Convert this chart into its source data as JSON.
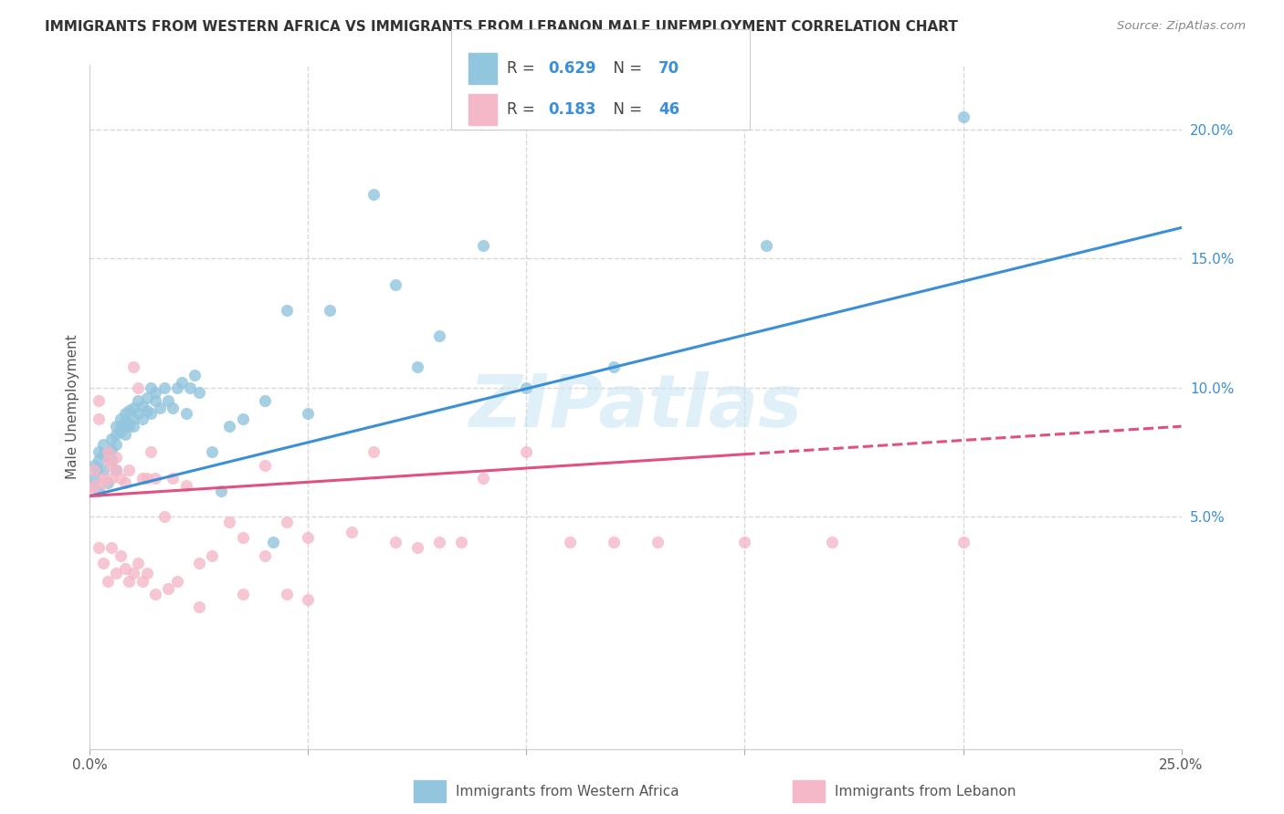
{
  "title": "IMMIGRANTS FROM WESTERN AFRICA VS IMMIGRANTS FROM LEBANON MALE UNEMPLOYMENT CORRELATION CHART",
  "source": "Source: ZipAtlas.com",
  "ylabel": "Male Unemployment",
  "xlim": [
    0.0,
    0.25
  ],
  "ylim": [
    -0.04,
    0.225
  ],
  "blue_color": "#92c5de",
  "blue_line_color": "#3b8fd4",
  "pink_color": "#f4b8c8",
  "pink_line_color": "#e05080",
  "text_blue": "#3b8fd4",
  "title_color": "#333333",
  "grid_color": "#d8d8d8",
  "background_color": "#ffffff",
  "watermark": "ZIPatlas",
  "blue_R": "0.629",
  "blue_N": "70",
  "pink_R": "0.183",
  "pink_N": "46",
  "blue_scatter_x": [
    0.0005,
    0.001,
    0.001,
    0.0015,
    0.002,
    0.002,
    0.002,
    0.003,
    0.003,
    0.003,
    0.004,
    0.004,
    0.004,
    0.005,
    0.005,
    0.005,
    0.006,
    0.006,
    0.006,
    0.006,
    0.007,
    0.007,
    0.007,
    0.008,
    0.008,
    0.008,
    0.009,
    0.009,
    0.009,
    0.01,
    0.01,
    0.01,
    0.011,
    0.011,
    0.012,
    0.012,
    0.013,
    0.013,
    0.014,
    0.014,
    0.015,
    0.015,
    0.016,
    0.017,
    0.018,
    0.019,
    0.02,
    0.021,
    0.022,
    0.023,
    0.024,
    0.025,
    0.028,
    0.03,
    0.032,
    0.035,
    0.04,
    0.042,
    0.045,
    0.05,
    0.055,
    0.065,
    0.07,
    0.075,
    0.08,
    0.09,
    0.1,
    0.12,
    0.155,
    0.2
  ],
  "blue_scatter_y": [
    0.062,
    0.065,
    0.07,
    0.068,
    0.06,
    0.072,
    0.075,
    0.068,
    0.074,
    0.078,
    0.063,
    0.073,
    0.075,
    0.08,
    0.076,
    0.072,
    0.082,
    0.078,
    0.085,
    0.068,
    0.083,
    0.088,
    0.085,
    0.087,
    0.082,
    0.09,
    0.086,
    0.091,
    0.085,
    0.088,
    0.092,
    0.085,
    0.09,
    0.095,
    0.093,
    0.088,
    0.091,
    0.096,
    0.09,
    0.1,
    0.095,
    0.098,
    0.092,
    0.1,
    0.095,
    0.092,
    0.1,
    0.102,
    0.09,
    0.1,
    0.105,
    0.098,
    0.075,
    0.06,
    0.085,
    0.088,
    0.095,
    0.04,
    0.13,
    0.09,
    0.13,
    0.175,
    0.14,
    0.108,
    0.12,
    0.155,
    0.1,
    0.108,
    0.155,
    0.205
  ],
  "pink_scatter_x": [
    0.0005,
    0.001,
    0.001,
    0.002,
    0.002,
    0.003,
    0.003,
    0.004,
    0.004,
    0.005,
    0.005,
    0.006,
    0.006,
    0.007,
    0.008,
    0.009,
    0.01,
    0.011,
    0.012,
    0.013,
    0.014,
    0.015,
    0.017,
    0.019,
    0.022,
    0.025,
    0.028,
    0.032,
    0.035,
    0.04,
    0.045,
    0.05,
    0.06,
    0.065,
    0.07,
    0.075,
    0.08,
    0.085,
    0.09,
    0.1,
    0.11,
    0.12,
    0.13,
    0.15,
    0.17,
    0.2
  ],
  "pink_scatter_y": [
    0.06,
    0.062,
    0.068,
    0.095,
    0.088,
    0.065,
    0.063,
    0.075,
    0.072,
    0.065,
    0.07,
    0.068,
    0.073,
    0.065,
    0.063,
    0.068,
    0.108,
    0.1,
    0.065,
    0.065,
    0.075,
    0.065,
    0.05,
    0.065,
    0.062,
    0.032,
    0.035,
    0.048,
    0.042,
    0.07,
    0.048,
    0.042,
    0.044,
    0.075,
    0.04,
    0.038,
    0.04,
    0.04,
    0.065,
    0.075,
    0.04,
    0.04,
    0.04,
    0.04,
    0.04,
    0.04
  ],
  "pink_neg_x": [
    0.002,
    0.003,
    0.004,
    0.005,
    0.006,
    0.007,
    0.008,
    0.009,
    0.01,
    0.011,
    0.012,
    0.013,
    0.015,
    0.018,
    0.02,
    0.025,
    0.035,
    0.04,
    0.045,
    0.05
  ],
  "pink_neg_y": [
    0.038,
    0.032,
    0.025,
    0.038,
    0.028,
    0.035,
    0.03,
    0.025,
    0.028,
    0.032,
    0.025,
    0.028,
    0.02,
    0.022,
    0.025,
    0.015,
    0.02,
    0.035,
    0.02,
    0.018
  ]
}
